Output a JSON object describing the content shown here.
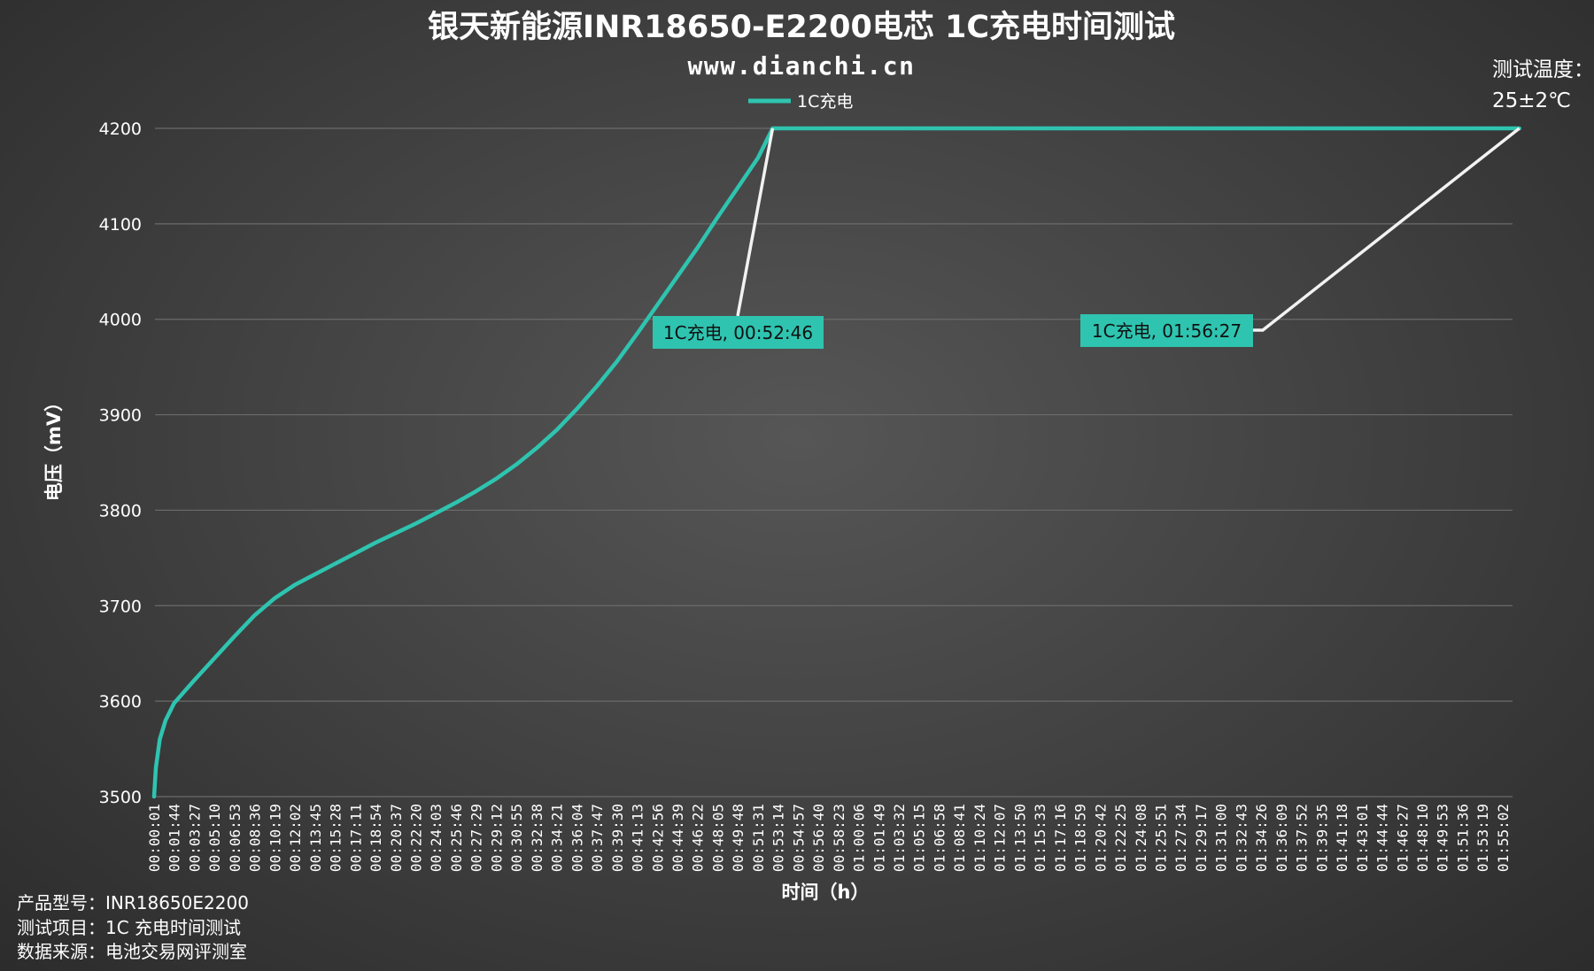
{
  "chart_data": {
    "type": "line",
    "title": "银天新能源INR18650-E2200电芯 1C充电时间测试",
    "subtitle": "www.dianchi.cn",
    "xlabel": "时间（h）",
    "ylabel": "电压（mV）",
    "ylim": [
      3500,
      4200
    ],
    "yticks": [
      3500,
      3600,
      3700,
      3800,
      3900,
      4000,
      4100,
      4200
    ],
    "grid": true,
    "legend_position": "top-center",
    "series": [
      {
        "name": "1C充电",
        "color": "#2ec4b0",
        "points": [
          [
            "00:00:01",
            3500
          ],
          [
            "00:00:10",
            3530
          ],
          [
            "00:00:30",
            3560
          ],
          [
            "00:01:00",
            3580
          ],
          [
            "00:01:44",
            3598
          ],
          [
            "00:03:27",
            3622
          ],
          [
            "00:05:10",
            3645
          ],
          [
            "00:06:53",
            3668
          ],
          [
            "00:08:36",
            3690
          ],
          [
            "00:10:19",
            3708
          ],
          [
            "00:12:02",
            3722
          ],
          [
            "00:13:45",
            3733
          ],
          [
            "00:15:28",
            3744
          ],
          [
            "00:17:11",
            3755
          ],
          [
            "00:18:54",
            3766
          ],
          [
            "00:20:37",
            3776
          ],
          [
            "00:22:20",
            3786
          ],
          [
            "00:24:03",
            3797
          ],
          [
            "00:25:46",
            3808
          ],
          [
            "00:27:29",
            3820
          ],
          [
            "00:29:12",
            3833
          ],
          [
            "00:30:55",
            3848
          ],
          [
            "00:32:38",
            3865
          ],
          [
            "00:34:21",
            3884
          ],
          [
            "00:36:04",
            3906
          ],
          [
            "00:37:47",
            3930
          ],
          [
            "00:39:30",
            3956
          ],
          [
            "00:41:13",
            3985
          ],
          [
            "00:42:56",
            4015
          ],
          [
            "00:44:39",
            4045
          ],
          [
            "00:46:22",
            4075
          ],
          [
            "00:48:05",
            4107
          ],
          [
            "00:49:48",
            4138
          ],
          [
            "00:51:31",
            4169
          ],
          [
            "00:52:46",
            4200
          ],
          [
            "01:56:27",
            4200
          ]
        ]
      }
    ],
    "x_tick_labels": [
      "00:00:01",
      "00:01:44",
      "00:03:27",
      "00:05:10",
      "00:06:53",
      "00:08:36",
      "00:10:19",
      "00:12:02",
      "00:13:45",
      "00:15:28",
      "00:17:11",
      "00:18:54",
      "00:20:37",
      "00:22:20",
      "00:24:03",
      "00:25:46",
      "00:27:29",
      "00:29:12",
      "00:30:55",
      "00:32:38",
      "00:34:21",
      "00:36:04",
      "00:37:47",
      "00:39:30",
      "00:41:13",
      "00:42:56",
      "00:44:39",
      "00:46:22",
      "00:48:05",
      "00:49:48",
      "00:51:31",
      "00:53:14",
      "00:54:57",
      "00:56:40",
      "00:58:23",
      "01:00:06",
      "01:01:49",
      "01:03:32",
      "01:05:15",
      "01:06:58",
      "01:08:41",
      "01:10:24",
      "01:12:07",
      "01:13:50",
      "01:15:33",
      "01:17:16",
      "01:18:59",
      "01:20:42",
      "01:22:25",
      "01:24:08",
      "01:25:51",
      "01:27:34",
      "01:29:17",
      "01:31:00",
      "01:32:43",
      "01:34:26",
      "01:36:09",
      "01:37:52",
      "01:39:35",
      "01:41:18",
      "01:43:01",
      "01:44:44",
      "01:46:27",
      "01:48:10",
      "01:49:53",
      "01:51:36",
      "01:53:19",
      "01:55:02"
    ],
    "annotations": [
      {
        "label": "1C充电, 00:52:46",
        "x": "00:52:46",
        "y": 4200
      },
      {
        "label": "1C充电, 01:56:27",
        "x": "01:56:27",
        "y": 4200
      }
    ],
    "corner_note": {
      "line1": "测试温度：",
      "line2": "25±2℃"
    }
  },
  "footer": {
    "model": "产品型号：INR18650E2200",
    "item": "测试项目：1C 充电时间测试",
    "source": "数据来源：电池交易网评测室"
  }
}
